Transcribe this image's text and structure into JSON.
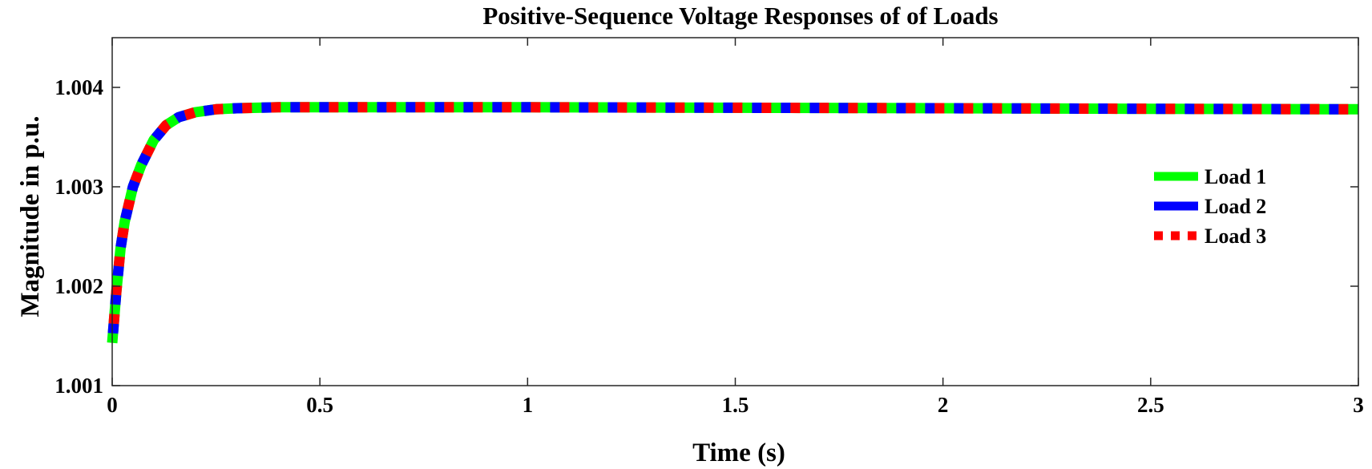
{
  "chart_data": {
    "type": "line",
    "title": "Positive-Sequence Voltage Responses of of Loads",
    "xlabel": "Time (s)",
    "ylabel": "Magnitude in p.u.",
    "xlim": [
      0,
      3
    ],
    "ylim": [
      1.001,
      1.0045
    ],
    "xticks": [
      0,
      0.5,
      1,
      1.5,
      2,
      2.5,
      3
    ],
    "xtick_labels": [
      "0",
      "0.5",
      "1",
      "1.5",
      "2",
      "2.5",
      "3"
    ],
    "yticks": [
      1.001,
      1.002,
      1.003,
      1.004
    ],
    "ytick_labels": [
      "1.001",
      "1.002",
      "1.003",
      "1.004"
    ],
    "grid": false,
    "legend_position": "right",
    "x": [
      0,
      0.01,
      0.02,
      0.03,
      0.05,
      0.07,
      0.1,
      0.13,
      0.16,
      0.2,
      0.25,
      0.3,
      0.4,
      0.5,
      0.75,
      1.0,
      1.5,
      2.0,
      2.5,
      3.0
    ],
    "series": [
      {
        "name": "Load 1",
        "color": "#00ff00",
        "style": "solid",
        "values": [
          1.00143,
          1.00195,
          1.00238,
          1.00265,
          1.003,
          1.00322,
          1.00347,
          1.00362,
          1.0037,
          1.00375,
          1.00378,
          1.00379,
          1.0038,
          1.0038,
          1.0038,
          1.0038,
          1.003795,
          1.00379,
          1.003785,
          1.00378
        ]
      },
      {
        "name": "Load 2",
        "color": "#0000ff",
        "style": "dashed",
        "values": [
          1.00143,
          1.00195,
          1.00238,
          1.00265,
          1.003,
          1.00322,
          1.00347,
          1.00362,
          1.0037,
          1.00375,
          1.00378,
          1.00379,
          1.0038,
          1.0038,
          1.0038,
          1.0038,
          1.003795,
          1.00379,
          1.003785,
          1.00378
        ]
      },
      {
        "name": "Load 3",
        "color": "#ff0000",
        "style": "dotted",
        "values": [
          1.00143,
          1.00195,
          1.00238,
          1.00265,
          1.003,
          1.00322,
          1.00347,
          1.00362,
          1.0037,
          1.00375,
          1.00378,
          1.00379,
          1.0038,
          1.0038,
          1.0038,
          1.0038,
          1.003795,
          1.00379,
          1.003785,
          1.00378
        ]
      }
    ]
  }
}
